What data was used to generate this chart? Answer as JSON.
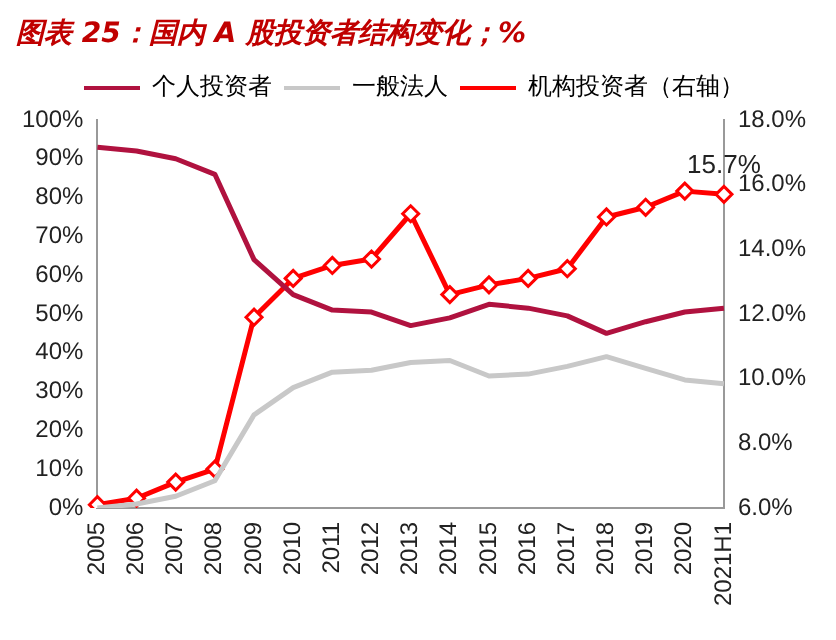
{
  "chart_data": {
    "type": "line",
    "title": "图表 25：国内 A 股投资者结构变化；%",
    "categories": [
      "2005",
      "2006",
      "2007",
      "2008",
      "2009",
      "2010",
      "2011",
      "2012",
      "2013",
      "2014",
      "2015",
      "2016",
      "2017",
      "2018",
      "2019",
      "2020",
      "2021H1"
    ],
    "series": [
      {
        "name": "个人投资者",
        "color": "#b0123f",
        "marker": "none",
        "values": [
          93,
          92,
          90,
          86,
          64,
          55,
          51,
          50.5,
          47,
          49,
          52.5,
          51.5,
          49.5,
          45,
          48,
          50.5,
          51.5
        ]
      },
      {
        "name": "一般法人",
        "color": "#c8c8c8",
        "marker": "none",
        "values": [
          0,
          1,
          3,
          7,
          24,
          31,
          35,
          35.5,
          37.5,
          38,
          34,
          34.5,
          36.5,
          39,
          36,
          33,
          32
        ]
      },
      {
        "name": "机构投资者（右轴）",
        "color": "#ff0000",
        "marker": "diamond",
        "axis": "y2",
        "values": [
          6.1,
          6.3,
          6.8,
          7.2,
          11.9,
          13.1,
          13.5,
          13.7,
          15.1,
          12.6,
          12.9,
          13.1,
          13.4,
          15.0,
          15.3,
          15.8,
          15.7
        ],
        "value_labels": [
          null,
          null,
          null,
          null,
          null,
          null,
          null,
          null,
          null,
          null,
          null,
          null,
          null,
          null,
          null,
          null,
          "15.7%"
        ]
      }
    ],
    "ylim": [
      0,
      100
    ],
    "yticks": [
      {
        "value": 0,
        "label": "0%"
      },
      {
        "value": 10,
        "label": "10%"
      },
      {
        "value": 20,
        "label": "20%"
      },
      {
        "value": 30,
        "label": "30%"
      },
      {
        "value": 40,
        "label": "40%"
      },
      {
        "value": 50,
        "label": "50%"
      },
      {
        "value": 60,
        "label": "60%"
      },
      {
        "value": 70,
        "label": "70%"
      },
      {
        "value": 80,
        "label": "80%"
      },
      {
        "value": 90,
        "label": "90%"
      },
      {
        "value": 100,
        "label": "100%"
      }
    ],
    "y2lim": [
      6,
      18
    ],
    "y2ticks": [
      {
        "value": 6,
        "label": "6.0%"
      },
      {
        "value": 8,
        "label": "8.0%"
      },
      {
        "value": 10,
        "label": "10.0%"
      },
      {
        "value": 12,
        "label": "12.0%"
      },
      {
        "value": 14,
        "label": "14.0%"
      },
      {
        "value": 16,
        "label": "16.0%"
      },
      {
        "value": 18,
        "label": "18.0%"
      }
    ],
    "grid": false,
    "legend": "top",
    "line_style": "solid"
  }
}
